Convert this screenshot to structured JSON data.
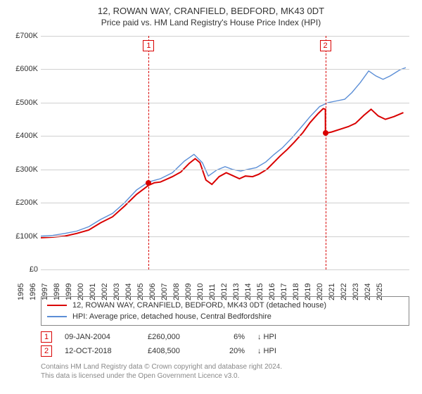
{
  "title": {
    "line1": "12, ROWAN WAY, CRANFIELD, BEDFORD, MK43 0DT",
    "line2": "Price paid vs. HM Land Registry's House Price Index (HPI)"
  },
  "chart": {
    "type": "line",
    "background_color": "#ffffff",
    "grid_color": "#d0d0d0",
    "x_min": 1995,
    "x_max": 2025.8,
    "x_ticks": [
      1995,
      1996,
      1997,
      1998,
      1999,
      2000,
      2001,
      2002,
      2003,
      2004,
      2005,
      2006,
      2007,
      2008,
      2009,
      2010,
      2011,
      2012,
      2013,
      2014,
      2015,
      2016,
      2017,
      2018,
      2019,
      2020,
      2021,
      2022,
      2023,
      2024,
      2025
    ],
    "y_min": 0,
    "y_max": 700000,
    "y_ticks": [
      {
        "v": 0,
        "label": "£0"
      },
      {
        "v": 100000,
        "label": "£100K"
      },
      {
        "v": 200000,
        "label": "£200K"
      },
      {
        "v": 300000,
        "label": "£300K"
      },
      {
        "v": 400000,
        "label": "£400K"
      },
      {
        "v": 500000,
        "label": "£500K"
      },
      {
        "v": 600000,
        "label": "£600K"
      },
      {
        "v": 700000,
        "label": "£700K"
      }
    ],
    "series_red": {
      "color": "#d90000",
      "width": 2,
      "points": [
        [
          1995,
          95000
        ],
        [
          1996,
          97000
        ],
        [
          1997,
          100000
        ],
        [
          1998,
          108000
        ],
        [
          1999,
          118000
        ],
        [
          2000,
          140000
        ],
        [
          2001,
          158000
        ],
        [
          2002,
          190000
        ],
        [
          2003,
          225000
        ],
        [
          2004,
          252000
        ],
        [
          2004.5,
          260000
        ],
        [
          2005,
          262000
        ],
        [
          2006,
          278000
        ],
        [
          2006.7,
          292000
        ],
        [
          2007.4,
          318000
        ],
        [
          2007.9,
          332000
        ],
        [
          2008.3,
          320000
        ],
        [
          2008.8,
          268000
        ],
        [
          2009.3,
          255000
        ],
        [
          2009.9,
          278000
        ],
        [
          2010.5,
          290000
        ],
        [
          2011,
          282000
        ],
        [
          2011.6,
          272000
        ],
        [
          2012.1,
          280000
        ],
        [
          2012.7,
          278000
        ],
        [
          2013.2,
          285000
        ],
        [
          2013.9,
          300000
        ],
        [
          2014.5,
          322000
        ],
        [
          2015,
          340000
        ],
        [
          2015.6,
          360000
        ],
        [
          2016.2,
          382000
        ],
        [
          2016.9,
          410000
        ],
        [
          2017.5,
          440000
        ],
        [
          2018.2,
          468000
        ],
        [
          2018.6,
          482000
        ],
        [
          2018.78,
          480000
        ],
        [
          2018.79,
          408000
        ],
        [
          2019.3,
          412000
        ],
        [
          2020,
          420000
        ],
        [
          2020.7,
          428000
        ],
        [
          2021.3,
          438000
        ],
        [
          2022,
          462000
        ],
        [
          2022.6,
          480000
        ],
        [
          2023.2,
          460000
        ],
        [
          2023.8,
          450000
        ],
        [
          2024.5,
          458000
        ],
        [
          2025.3,
          470000
        ]
      ]
    },
    "series_blue": {
      "color": "#5b8ed6",
      "width": 1.4,
      "points": [
        [
          1995,
          100000
        ],
        [
          1996,
          102000
        ],
        [
          1997,
          108000
        ],
        [
          1998,
          115000
        ],
        [
          1999,
          128000
        ],
        [
          2000,
          150000
        ],
        [
          2001,
          168000
        ],
        [
          2002,
          200000
        ],
        [
          2003,
          238000
        ],
        [
          2004,
          262000
        ],
        [
          2005,
          272000
        ],
        [
          2006,
          290000
        ],
        [
          2007,
          325000
        ],
        [
          2007.8,
          345000
        ],
        [
          2008.5,
          320000
        ],
        [
          2009,
          280000
        ],
        [
          2009.7,
          298000
        ],
        [
          2010.4,
          308000
        ],
        [
          2011,
          300000
        ],
        [
          2011.7,
          295000
        ],
        [
          2012.3,
          300000
        ],
        [
          2013,
          305000
        ],
        [
          2013.8,
          322000
        ],
        [
          2014.5,
          345000
        ],
        [
          2015.2,
          365000
        ],
        [
          2016,
          395000
        ],
        [
          2016.8,
          428000
        ],
        [
          2017.5,
          458000
        ],
        [
          2018.3,
          488000
        ],
        [
          2019,
          500000
        ],
        [
          2019.7,
          505000
        ],
        [
          2020.4,
          510000
        ],
        [
          2021,
          530000
        ],
        [
          2021.7,
          560000
        ],
        [
          2022.4,
          595000
        ],
        [
          2023,
          580000
        ],
        [
          2023.6,
          570000
        ],
        [
          2024.2,
          580000
        ],
        [
          2025,
          598000
        ],
        [
          2025.5,
          605000
        ]
      ]
    },
    "event_lines": [
      {
        "x": 2004.02,
        "color": "#d90000",
        "flag": "1"
      },
      {
        "x": 2018.78,
        "color": "#d90000",
        "flag": "2"
      }
    ],
    "markers": [
      {
        "x": 2004.02,
        "y": 260000,
        "color": "#d90000"
      },
      {
        "x": 2018.78,
        "y": 408500,
        "color": "#d90000"
      }
    ]
  },
  "legend": {
    "items": [
      {
        "color": "#d90000",
        "label": "12, ROWAN WAY, CRANFIELD, BEDFORD, MK43 0DT (detached house)"
      },
      {
        "color": "#5b8ed6",
        "label": "HPI: Average price, detached house, Central Bedfordshire"
      }
    ]
  },
  "transactions": [
    {
      "flag": "1",
      "flag_color": "#d90000",
      "date": "09-JAN-2004",
      "price": "£260,000",
      "pct": "6%",
      "arrow": "↓ HPI"
    },
    {
      "flag": "2",
      "flag_color": "#d90000",
      "date": "12-OCT-2018",
      "price": "£408,500",
      "pct": "20%",
      "arrow": "↓ HPI"
    }
  ],
  "footer": {
    "line1": "Contains HM Land Registry data © Crown copyright and database right 2024.",
    "line2": "This data is licensed under the Open Government Licence v3.0."
  }
}
